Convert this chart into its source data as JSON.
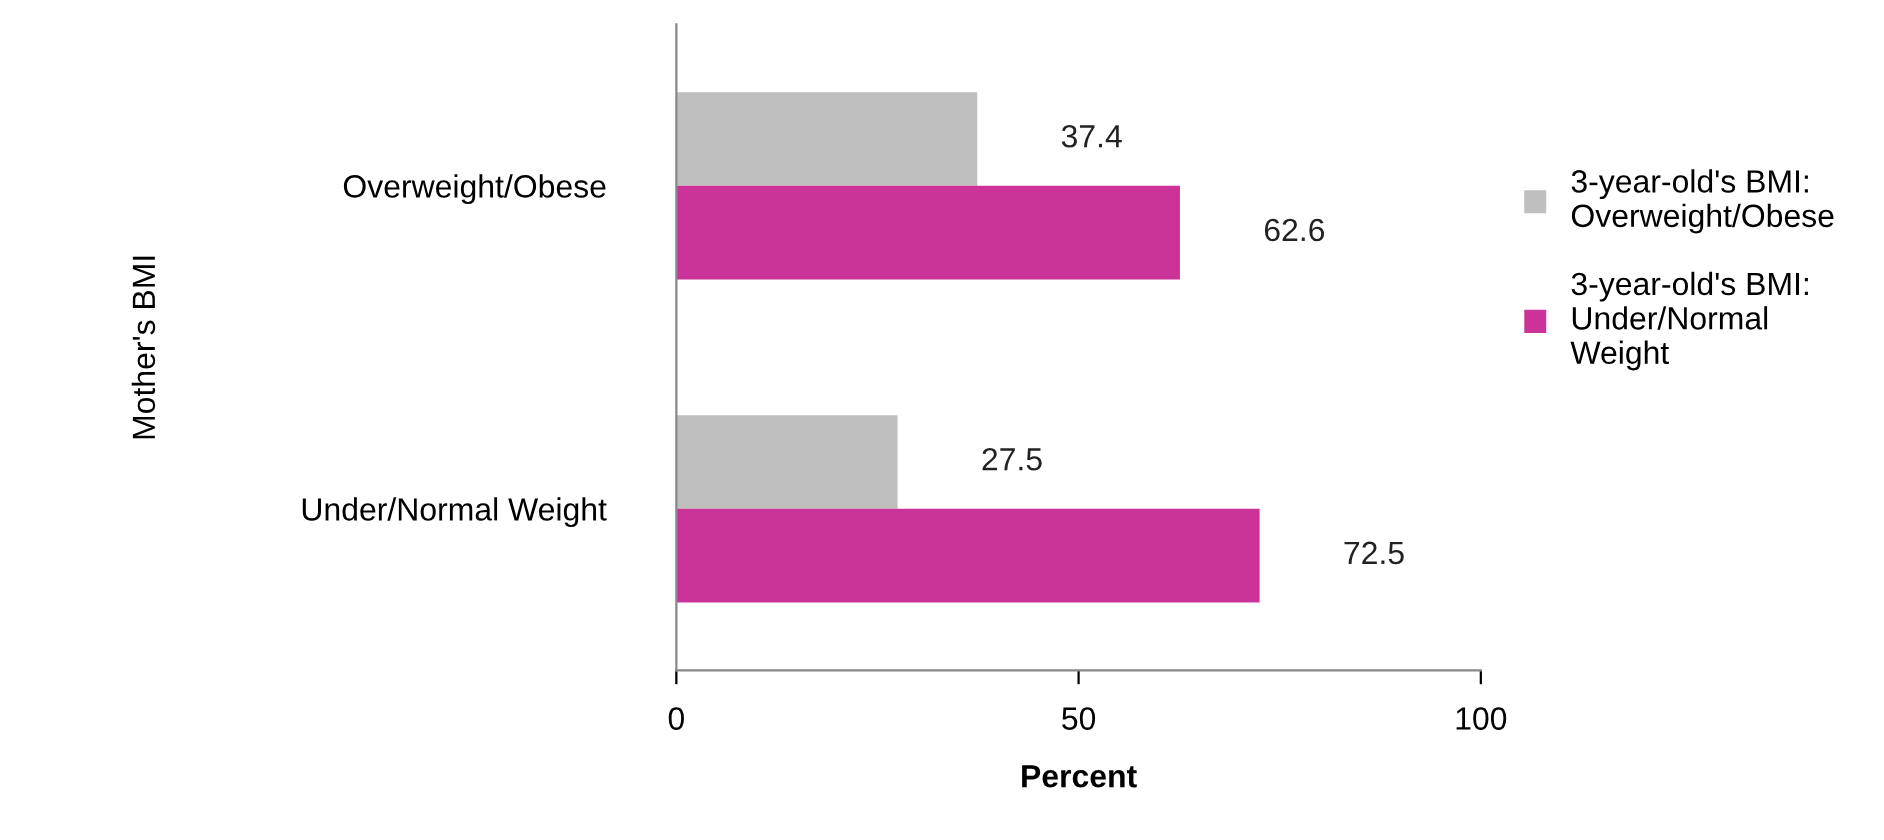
{
  "chart_data": {
    "type": "bar",
    "orientation": "horizontal",
    "ylabel": "Mother's BMI",
    "xlabel": "Percent",
    "categories": [
      "Overweight/Obese",
      "Under/Normal Weight"
    ],
    "series": [
      {
        "name": "3-year-old's BMI: Overweight/Obese",
        "color": "#bfbfbf",
        "values": [
          37.4,
          27.5
        ]
      },
      {
        "name": "3-year-old's BMI: Under/Normal Weight",
        "color": "#cc3399",
        "values": [
          62.6,
          72.5
        ]
      }
    ],
    "xlim": [
      0,
      100
    ],
    "xticks": [
      0,
      50,
      100
    ],
    "data_labels": true,
    "grid": false,
    "legend": "right"
  }
}
